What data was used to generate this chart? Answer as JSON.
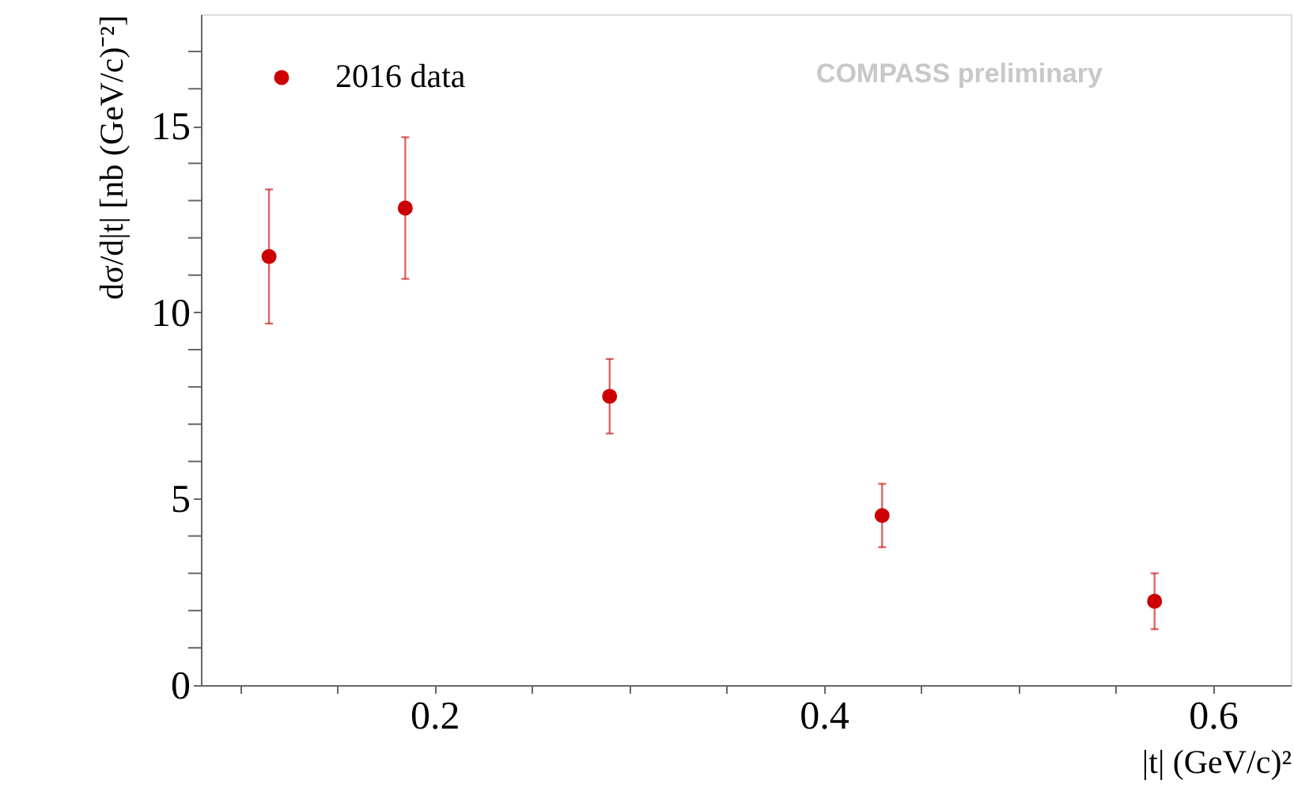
{
  "chart_data": {
    "type": "scatter",
    "xlabel": "|t| (GeV/c)²",
    "ylabel": "dσ/d|t| [nb (GeV/c)⁻²]",
    "annotations": [
      "COMPASS preliminary"
    ],
    "x": [
      0.115,
      0.185,
      0.29,
      0.43,
      0.57
    ],
    "series": [
      {
        "name": "2016 data",
        "color": "#cc0000",
        "values": [
          11.5,
          12.8,
          7.75,
          4.55,
          2.25
        ],
        "errors": [
          1.8,
          1.9,
          1.0,
          0.85,
          0.75
        ]
      }
    ],
    "xlim": [
      0.08,
      0.64
    ],
    "xticks": [
      {
        "value": 0.1,
        "label": null
      },
      {
        "value": 0.15,
        "label": null
      },
      0.2,
      {
        "value": 0.25,
        "label": null
      },
      {
        "value": 0.3,
        "label": null
      },
      {
        "value": 0.35,
        "label": null
      },
      0.4,
      {
        "value": 0.45,
        "label": null
      },
      {
        "value": 0.5,
        "label": null
      },
      {
        "value": 0.55,
        "label": null
      },
      0.6
    ],
    "ylim": [
      0,
      18
    ],
    "yticks": [
      0,
      {
        "value": 1,
        "label": null
      },
      {
        "value": 2,
        "label": null
      },
      {
        "value": 3,
        "label": null
      },
      {
        "value": 4,
        "label": null
      },
      5,
      {
        "value": 6,
        "label": null
      },
      {
        "value": 7,
        "label": null
      },
      {
        "value": 8,
        "label": null
      },
      {
        "value": 9,
        "label": null
      },
      10,
      {
        "value": 11,
        "label": null
      },
      {
        "value": 12,
        "label": null
      },
      {
        "value": 13,
        "label": null
      },
      {
        "value": 14,
        "label": null
      },
      15,
      {
        "value": 16,
        "label": null
      },
      {
        "value": 17,
        "label": null
      }
    ],
    "marker": "circle",
    "legend": "top left",
    "grid": false
  }
}
